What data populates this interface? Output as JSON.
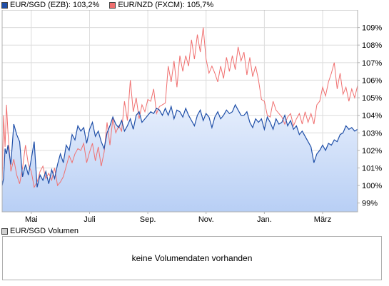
{
  "legend": [
    {
      "label": "EUR/SGD (EZB): 103,2%",
      "color": "#1f4fa8"
    },
    {
      "label": "EUR/NZD (FXCM): 105,7%",
      "color": "#f07070"
    }
  ],
  "volume": {
    "legend_label": "EUR/SGD Volumen",
    "legend_color": "#d0d0d0",
    "empty_text": "keine Volumendaten vorhanden"
  },
  "colors": {
    "sgd_line": "#1f4fa8",
    "sgd_fill_top": "#bcd3f7",
    "sgd_fill_bottom": "#e6eefc",
    "nzd_line": "#f07070",
    "grid": "#dcdcdc",
    "frame": "#b0b0b0"
  },
  "chart_data": {
    "type": "line",
    "x_tick_labels": [
      "Mai",
      "Juli",
      "Sep.",
      "Nov.",
      "Jan.",
      "März"
    ],
    "y_tick_labels": [
      "99%",
      "100%",
      "101%",
      "102%",
      "103%",
      "104%",
      "105%",
      "106%",
      "107%",
      "108%",
      "109%"
    ],
    "y_ticks": [
      99,
      100,
      101,
      102,
      103,
      104,
      105,
      106,
      107,
      108,
      109
    ],
    "ylim": [
      98.5,
      110.0
    ],
    "x_month_index": [
      1,
      3,
      5,
      7,
      9,
      11
    ],
    "xlim": [
      0,
      12.2
    ],
    "grid": true,
    "series": [
      {
        "name": "EUR/SGD (EZB): 103,2%",
        "area": true,
        "x": [
          0.0,
          0.05,
          0.1,
          0.15,
          0.2,
          0.3,
          0.4,
          0.5,
          0.6,
          0.7,
          0.8,
          0.9,
          1.0,
          1.1,
          1.2,
          1.3,
          1.4,
          1.5,
          1.6,
          1.7,
          1.8,
          1.9,
          2.0,
          2.1,
          2.2,
          2.3,
          2.4,
          2.5,
          2.6,
          2.7,
          2.8,
          2.9,
          3.0,
          3.1,
          3.2,
          3.3,
          3.4,
          3.5,
          3.6,
          3.7,
          3.8,
          3.9,
          4.0,
          4.1,
          4.2,
          4.3,
          4.4,
          4.5,
          4.6,
          4.7,
          4.8,
          4.9,
          5.0,
          5.1,
          5.2,
          5.3,
          5.4,
          5.5,
          5.6,
          5.7,
          5.8,
          5.9,
          6.0,
          6.1,
          6.2,
          6.3,
          6.4,
          6.5,
          6.6,
          6.7,
          6.8,
          6.9,
          7.0,
          7.1,
          7.2,
          7.3,
          7.4,
          7.5,
          7.6,
          7.7,
          7.8,
          7.9,
          8.0,
          8.1,
          8.2,
          8.3,
          8.4,
          8.5,
          8.6,
          8.7,
          8.8,
          8.9,
          9.0,
          9.1,
          9.2,
          9.3,
          9.4,
          9.5,
          9.6,
          9.7,
          9.8,
          9.9,
          10.0,
          10.1,
          10.2,
          10.3,
          10.4,
          10.5,
          10.6,
          10.7,
          10.8,
          10.9,
          11.0,
          11.1,
          11.2,
          11.3,
          11.4,
          11.5,
          11.6,
          11.7,
          11.8,
          11.9,
          12.0,
          12.1,
          12.2
        ],
        "values": [
          100.0,
          100.4,
          102.1,
          101.8,
          102.3,
          101.2,
          103.5,
          102.9,
          102.5,
          100.5,
          101.2,
          100.6,
          101.5,
          102.5,
          99.9,
          100.6,
          100.3,
          100.8,
          100.1,
          100.9,
          100.4,
          101.2,
          101.8,
          101.3,
          102.3,
          102.0,
          102.9,
          102.6,
          103.4,
          103.1,
          103.3,
          102.4,
          103.2,
          103.6,
          102.8,
          103.1,
          102.5,
          102.1,
          103.0,
          103.4,
          103.9,
          103.5,
          103.3,
          103.7,
          103.1,
          103.4,
          103.8,
          103.2,
          104.0,
          104.2,
          103.6,
          103.8,
          104.0,
          104.2,
          104.1,
          104.4,
          104.3,
          104.0,
          104.4,
          104.0,
          104.5,
          103.8,
          104.3,
          104.2,
          103.9,
          104.4,
          104.0,
          103.7,
          103.4,
          104.0,
          104.3,
          103.7,
          104.1,
          103.9,
          103.3,
          103.9,
          104.2,
          103.8,
          104.0,
          104.3,
          104.1,
          104.2,
          104.6,
          104.3,
          104.0,
          104.0,
          104.2,
          103.6,
          103.3,
          103.8,
          103.6,
          103.8,
          103.2,
          103.9,
          103.6,
          103.2,
          103.8,
          103.5,
          103.6,
          104.0,
          103.4,
          103.7,
          103.2,
          103.4,
          102.9,
          103.1,
          102.8,
          102.5,
          102.2,
          101.3,
          101.8,
          102.0,
          102.3,
          102.0,
          102.4,
          102.3,
          102.6,
          102.5,
          102.9,
          103.0,
          103.4,
          103.2,
          103.3,
          103.1,
          103.2
        ]
      },
      {
        "name": "EUR/NZD (FXCM): 105,7%",
        "area": false,
        "x": [
          0.0,
          0.05,
          0.1,
          0.15,
          0.2,
          0.3,
          0.4,
          0.5,
          0.6,
          0.7,
          0.8,
          0.9,
          1.0,
          1.1,
          1.2,
          1.3,
          1.4,
          1.5,
          1.6,
          1.7,
          1.8,
          1.9,
          2.0,
          2.1,
          2.2,
          2.3,
          2.4,
          2.5,
          2.6,
          2.7,
          2.8,
          2.9,
          3.0,
          3.1,
          3.2,
          3.3,
          3.4,
          3.5,
          3.6,
          3.7,
          3.8,
          3.9,
          4.0,
          4.1,
          4.2,
          4.3,
          4.4,
          4.5,
          4.6,
          4.7,
          4.8,
          4.9,
          5.0,
          5.1,
          5.2,
          5.3,
          5.4,
          5.5,
          5.6,
          5.7,
          5.8,
          5.9,
          6.0,
          6.1,
          6.2,
          6.3,
          6.4,
          6.5,
          6.6,
          6.7,
          6.8,
          6.9,
          7.0,
          7.1,
          7.2,
          7.3,
          7.4,
          7.5,
          7.6,
          7.7,
          7.8,
          7.9,
          8.0,
          8.1,
          8.2,
          8.3,
          8.4,
          8.5,
          8.6,
          8.7,
          8.8,
          8.9,
          9.0,
          9.1,
          9.2,
          9.3,
          9.4,
          9.5,
          9.6,
          9.7,
          9.8,
          9.9,
          10.0,
          10.1,
          10.2,
          10.3,
          10.4,
          10.5,
          10.6,
          10.7,
          10.8,
          10.9,
          11.0,
          11.1,
          11.2,
          11.3,
          11.4,
          11.5,
          11.6,
          11.7,
          11.8,
          11.9,
          12.0,
          12.1,
          12.2
        ],
        "values": [
          100.0,
          104.0,
          102.2,
          104.6,
          103.0,
          100.8,
          101.5,
          100.6,
          100.1,
          101.0,
          102.3,
          101.2,
          100.8,
          99.9,
          100.2,
          100.8,
          101.1,
          100.4,
          100.7,
          100.3,
          101.0,
          100.0,
          100.2,
          100.5,
          101.1,
          101.7,
          101.3,
          101.8,
          102.1,
          102.0,
          102.4,
          101.3,
          101.9,
          102.4,
          101.4,
          102.2,
          101.1,
          101.9,
          103.6,
          102.3,
          103.8,
          103.0,
          103.4,
          103.1,
          104.8,
          103.7,
          106.0,
          104.2,
          105.0,
          103.8,
          104.6,
          104.2,
          104.9,
          104.8,
          105.5,
          104.1,
          104.5,
          104.6,
          104.7,
          106.8,
          105.9,
          107.1,
          105.6,
          107.4,
          106.5,
          107.4,
          106.8,
          108.3,
          107.2,
          108.6,
          107.6,
          109.0,
          107.2,
          106.4,
          106.8,
          106.4,
          105.9,
          106.8,
          106.1,
          107.3,
          106.5,
          107.4,
          106.6,
          107.9,
          107.1,
          107.6,
          106.3,
          107.3,
          106.2,
          106.8,
          106.0,
          104.9,
          104.8,
          104.0,
          103.9,
          104.8,
          104.3,
          104.1,
          103.9,
          103.5,
          103.9,
          104.1,
          103.4,
          103.8,
          104.1,
          103.5,
          104.2,
          103.6,
          104.1,
          103.5,
          104.6,
          104.8,
          105.6,
          105.1,
          105.9,
          106.4,
          107.0,
          105.5,
          106.4,
          105.2,
          105.6,
          104.8,
          105.5,
          105.0,
          105.7
        ]
      }
    ]
  }
}
